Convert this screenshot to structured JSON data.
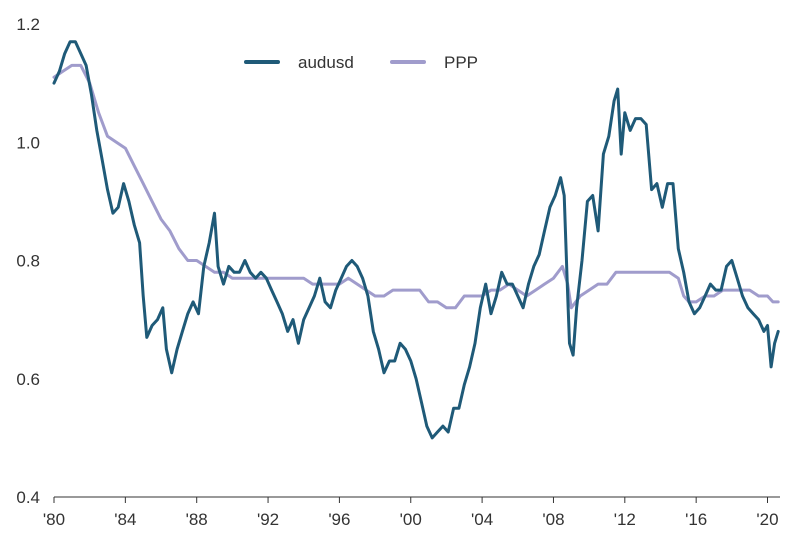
{
  "chart_data": {
    "type": "line",
    "title": "",
    "xlabel": "",
    "ylabel": "",
    "xlim": [
      1980,
      2020.7
    ],
    "ylim": [
      0.4,
      1.2
    ],
    "y_ticks": [
      0.4,
      0.6,
      0.8,
      1.0,
      1.2
    ],
    "y_tick_labels": [
      "0.4",
      "0.6",
      "0.8",
      "1.0",
      "1.2"
    ],
    "x_ticks": [
      1980,
      1984,
      1988,
      1992,
      1996,
      2000,
      2004,
      2008,
      2012,
      2016,
      2020
    ],
    "x_tick_labels": [
      "'80",
      "'84",
      "'88",
      "'92",
      "'96",
      "'00",
      "'04",
      "'08",
      "'12",
      "'16",
      "'20"
    ],
    "grid": false,
    "legend_position": "top-center",
    "series": [
      {
        "name": "audusd",
        "color": "#1f5a78",
        "points": [
          [
            1980.0,
            1.1
          ],
          [
            1980.3,
            1.12
          ],
          [
            1980.6,
            1.15
          ],
          [
            1980.9,
            1.17
          ],
          [
            1981.2,
            1.17
          ],
          [
            1981.5,
            1.15
          ],
          [
            1981.8,
            1.13
          ],
          [
            1982.1,
            1.08
          ],
          [
            1982.4,
            1.02
          ],
          [
            1982.7,
            0.97
          ],
          [
            1983.0,
            0.92
          ],
          [
            1983.3,
            0.88
          ],
          [
            1983.6,
            0.89
          ],
          [
            1983.9,
            0.93
          ],
          [
            1984.2,
            0.9
          ],
          [
            1984.5,
            0.86
          ],
          [
            1984.8,
            0.83
          ],
          [
            1985.0,
            0.74
          ],
          [
            1985.2,
            0.67
          ],
          [
            1985.5,
            0.69
          ],
          [
            1985.8,
            0.7
          ],
          [
            1986.1,
            0.72
          ],
          [
            1986.3,
            0.65
          ],
          [
            1986.6,
            0.61
          ],
          [
            1986.9,
            0.65
          ],
          [
            1987.2,
            0.68
          ],
          [
            1987.5,
            0.71
          ],
          [
            1987.8,
            0.73
          ],
          [
            1988.1,
            0.71
          ],
          [
            1988.4,
            0.79
          ],
          [
            1988.7,
            0.83
          ],
          [
            1989.0,
            0.88
          ],
          [
            1989.2,
            0.79
          ],
          [
            1989.5,
            0.76
          ],
          [
            1989.8,
            0.79
          ],
          [
            1990.1,
            0.78
          ],
          [
            1990.4,
            0.78
          ],
          [
            1990.7,
            0.8
          ],
          [
            1991.0,
            0.78
          ],
          [
            1991.3,
            0.77
          ],
          [
            1991.6,
            0.78
          ],
          [
            1991.9,
            0.77
          ],
          [
            1992.2,
            0.75
          ],
          [
            1992.5,
            0.73
          ],
          [
            1992.8,
            0.71
          ],
          [
            1993.1,
            0.68
          ],
          [
            1993.4,
            0.7
          ],
          [
            1993.7,
            0.66
          ],
          [
            1994.0,
            0.7
          ],
          [
            1994.3,
            0.72
          ],
          [
            1994.6,
            0.74
          ],
          [
            1994.9,
            0.77
          ],
          [
            1995.2,
            0.73
          ],
          [
            1995.5,
            0.72
          ],
          [
            1995.8,
            0.75
          ],
          [
            1996.1,
            0.77
          ],
          [
            1996.4,
            0.79
          ],
          [
            1996.7,
            0.8
          ],
          [
            1997.0,
            0.79
          ],
          [
            1997.3,
            0.77
          ],
          [
            1997.6,
            0.74
          ],
          [
            1997.9,
            0.68
          ],
          [
            1998.2,
            0.65
          ],
          [
            1998.5,
            0.61
          ],
          [
            1998.8,
            0.63
          ],
          [
            1999.1,
            0.63
          ],
          [
            1999.4,
            0.66
          ],
          [
            1999.7,
            0.65
          ],
          [
            2000.0,
            0.63
          ],
          [
            2000.3,
            0.6
          ],
          [
            2000.6,
            0.56
          ],
          [
            2000.9,
            0.52
          ],
          [
            2001.2,
            0.5
          ],
          [
            2001.5,
            0.51
          ],
          [
            2001.8,
            0.52
          ],
          [
            2002.1,
            0.51
          ],
          [
            2002.4,
            0.55
          ],
          [
            2002.7,
            0.55
          ],
          [
            2003.0,
            0.59
          ],
          [
            2003.3,
            0.62
          ],
          [
            2003.6,
            0.66
          ],
          [
            2003.9,
            0.72
          ],
          [
            2004.2,
            0.76
          ],
          [
            2004.5,
            0.71
          ],
          [
            2004.8,
            0.74
          ],
          [
            2005.1,
            0.78
          ],
          [
            2005.4,
            0.76
          ],
          [
            2005.7,
            0.76
          ],
          [
            2006.0,
            0.74
          ],
          [
            2006.3,
            0.72
          ],
          [
            2006.6,
            0.76
          ],
          [
            2006.9,
            0.79
          ],
          [
            2007.2,
            0.81
          ],
          [
            2007.5,
            0.85
          ],
          [
            2007.8,
            0.89
          ],
          [
            2008.1,
            0.91
          ],
          [
            2008.4,
            0.94
          ],
          [
            2008.6,
            0.91
          ],
          [
            2008.8,
            0.74
          ],
          [
            2008.9,
            0.66
          ],
          [
            2009.1,
            0.64
          ],
          [
            2009.3,
            0.72
          ],
          [
            2009.6,
            0.8
          ],
          [
            2009.9,
            0.9
          ],
          [
            2010.2,
            0.91
          ],
          [
            2010.5,
            0.85
          ],
          [
            2010.8,
            0.98
          ],
          [
            2011.1,
            1.01
          ],
          [
            2011.4,
            1.07
          ],
          [
            2011.6,
            1.09
          ],
          [
            2011.8,
            0.98
          ],
          [
            2012.0,
            1.05
          ],
          [
            2012.3,
            1.02
          ],
          [
            2012.6,
            1.04
          ],
          [
            2012.9,
            1.04
          ],
          [
            2013.2,
            1.03
          ],
          [
            2013.5,
            0.92
          ],
          [
            2013.8,
            0.93
          ],
          [
            2014.1,
            0.89
          ],
          [
            2014.4,
            0.93
          ],
          [
            2014.7,
            0.93
          ],
          [
            2015.0,
            0.82
          ],
          [
            2015.3,
            0.78
          ],
          [
            2015.6,
            0.73
          ],
          [
            2015.9,
            0.71
          ],
          [
            2016.2,
            0.72
          ],
          [
            2016.5,
            0.74
          ],
          [
            2016.8,
            0.76
          ],
          [
            2017.1,
            0.75
          ],
          [
            2017.4,
            0.75
          ],
          [
            2017.7,
            0.79
          ],
          [
            2018.0,
            0.8
          ],
          [
            2018.3,
            0.77
          ],
          [
            2018.6,
            0.74
          ],
          [
            2018.9,
            0.72
          ],
          [
            2019.2,
            0.71
          ],
          [
            2019.5,
            0.7
          ],
          [
            2019.8,
            0.68
          ],
          [
            2020.0,
            0.69
          ],
          [
            2020.2,
            0.62
          ],
          [
            2020.4,
            0.66
          ],
          [
            2020.6,
            0.68
          ]
        ]
      },
      {
        "name": "PPP",
        "color": "#a09ccc",
        "points": [
          [
            1980.0,
            1.11
          ],
          [
            1980.5,
            1.12
          ],
          [
            1981.0,
            1.13
          ],
          [
            1981.5,
            1.13
          ],
          [
            1982.0,
            1.1
          ],
          [
            1982.5,
            1.05
          ],
          [
            1983.0,
            1.01
          ],
          [
            1983.5,
            1.0
          ],
          [
            1984.0,
            0.99
          ],
          [
            1984.5,
            0.96
          ],
          [
            1985.0,
            0.93
          ],
          [
            1985.5,
            0.9
          ],
          [
            1986.0,
            0.87
          ],
          [
            1986.5,
            0.85
          ],
          [
            1987.0,
            0.82
          ],
          [
            1987.5,
            0.8
          ],
          [
            1988.0,
            0.8
          ],
          [
            1988.5,
            0.79
          ],
          [
            1989.0,
            0.78
          ],
          [
            1989.5,
            0.78
          ],
          [
            1990.0,
            0.77
          ],
          [
            1990.5,
            0.77
          ],
          [
            1991.0,
            0.77
          ],
          [
            1991.5,
            0.77
          ],
          [
            1992.0,
            0.77
          ],
          [
            1992.5,
            0.77
          ],
          [
            1993.0,
            0.77
          ],
          [
            1993.5,
            0.77
          ],
          [
            1994.0,
            0.77
          ],
          [
            1994.5,
            0.76
          ],
          [
            1995.0,
            0.76
          ],
          [
            1995.5,
            0.76
          ],
          [
            1996.0,
            0.76
          ],
          [
            1996.5,
            0.77
          ],
          [
            1997.0,
            0.76
          ],
          [
            1997.5,
            0.75
          ],
          [
            1998.0,
            0.74
          ],
          [
            1998.5,
            0.74
          ],
          [
            1999.0,
            0.75
          ],
          [
            1999.5,
            0.75
          ],
          [
            2000.0,
            0.75
          ],
          [
            2000.5,
            0.75
          ],
          [
            2001.0,
            0.73
          ],
          [
            2001.5,
            0.73
          ],
          [
            2002.0,
            0.72
          ],
          [
            2002.5,
            0.72
          ],
          [
            2003.0,
            0.74
          ],
          [
            2003.5,
            0.74
          ],
          [
            2004.0,
            0.74
          ],
          [
            2004.5,
            0.75
          ],
          [
            2005.0,
            0.75
          ],
          [
            2005.5,
            0.76
          ],
          [
            2006.0,
            0.75
          ],
          [
            2006.5,
            0.74
          ],
          [
            2007.0,
            0.75
          ],
          [
            2007.5,
            0.76
          ],
          [
            2008.0,
            0.77
          ],
          [
            2008.5,
            0.79
          ],
          [
            2008.8,
            0.76
          ],
          [
            2009.0,
            0.72
          ],
          [
            2009.5,
            0.74
          ],
          [
            2010.0,
            0.75
          ],
          [
            2010.5,
            0.76
          ],
          [
            2011.0,
            0.76
          ],
          [
            2011.5,
            0.78
          ],
          [
            2012.0,
            0.78
          ],
          [
            2012.5,
            0.78
          ],
          [
            2013.0,
            0.78
          ],
          [
            2013.5,
            0.78
          ],
          [
            2014.0,
            0.78
          ],
          [
            2014.5,
            0.78
          ],
          [
            2015.0,
            0.77
          ],
          [
            2015.3,
            0.74
          ],
          [
            2015.6,
            0.73
          ],
          [
            2016.0,
            0.73
          ],
          [
            2016.5,
            0.74
          ],
          [
            2017.0,
            0.74
          ],
          [
            2017.5,
            0.75
          ],
          [
            2018.0,
            0.75
          ],
          [
            2018.5,
            0.75
          ],
          [
            2019.0,
            0.75
          ],
          [
            2019.5,
            0.74
          ],
          [
            2020.0,
            0.74
          ],
          [
            2020.3,
            0.73
          ],
          [
            2020.6,
            0.73
          ]
        ]
      }
    ]
  }
}
